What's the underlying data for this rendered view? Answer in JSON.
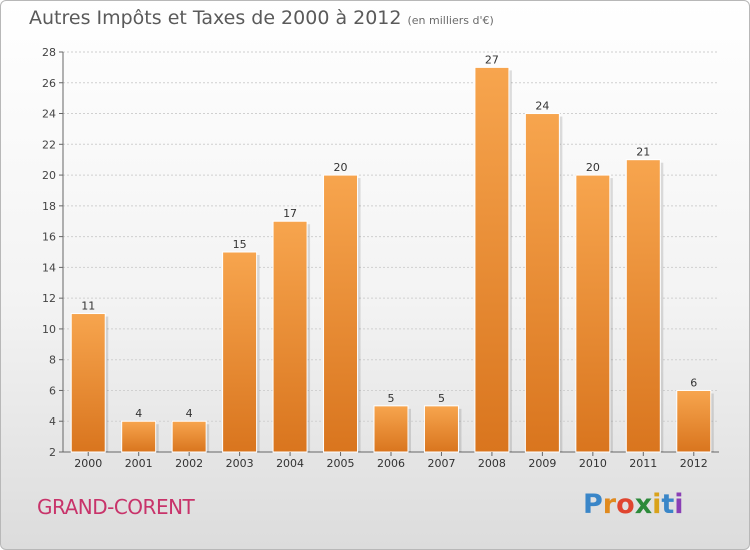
{
  "title": "Autres Impôts et Taxes de 2000 à 2012",
  "subtitle": "(en milliers d'€)",
  "commune": "GRAND-CORENT",
  "logo": {
    "letters": [
      "P",
      "r",
      "o",
      "x",
      "i",
      "t",
      "i"
    ],
    "colors": [
      "#3a86c8",
      "#e08a1e",
      "#e0452f",
      "#2c8a3a",
      "#d9a21b",
      "#3a86c8",
      "#8a3fb5"
    ]
  },
  "colors": {
    "bar_top": "#f7a54e",
    "bar_bottom": "#d9751e",
    "commune": "#c8336a"
  },
  "chart_data": {
    "type": "bar",
    "categories": [
      "2000",
      "2001",
      "2002",
      "2003",
      "2004",
      "2005",
      "2006",
      "2007",
      "2008",
      "2009",
      "2010",
      "2011",
      "2012"
    ],
    "values": [
      11,
      4,
      4,
      15,
      17,
      20,
      5,
      5,
      27,
      24,
      20,
      21,
      6
    ],
    "yticks": [
      2,
      4,
      6,
      8,
      10,
      12,
      14,
      16,
      18,
      20,
      22,
      24,
      26,
      28
    ],
    "ylim": [
      2,
      28
    ],
    "grid": true,
    "data_labels": true
  }
}
